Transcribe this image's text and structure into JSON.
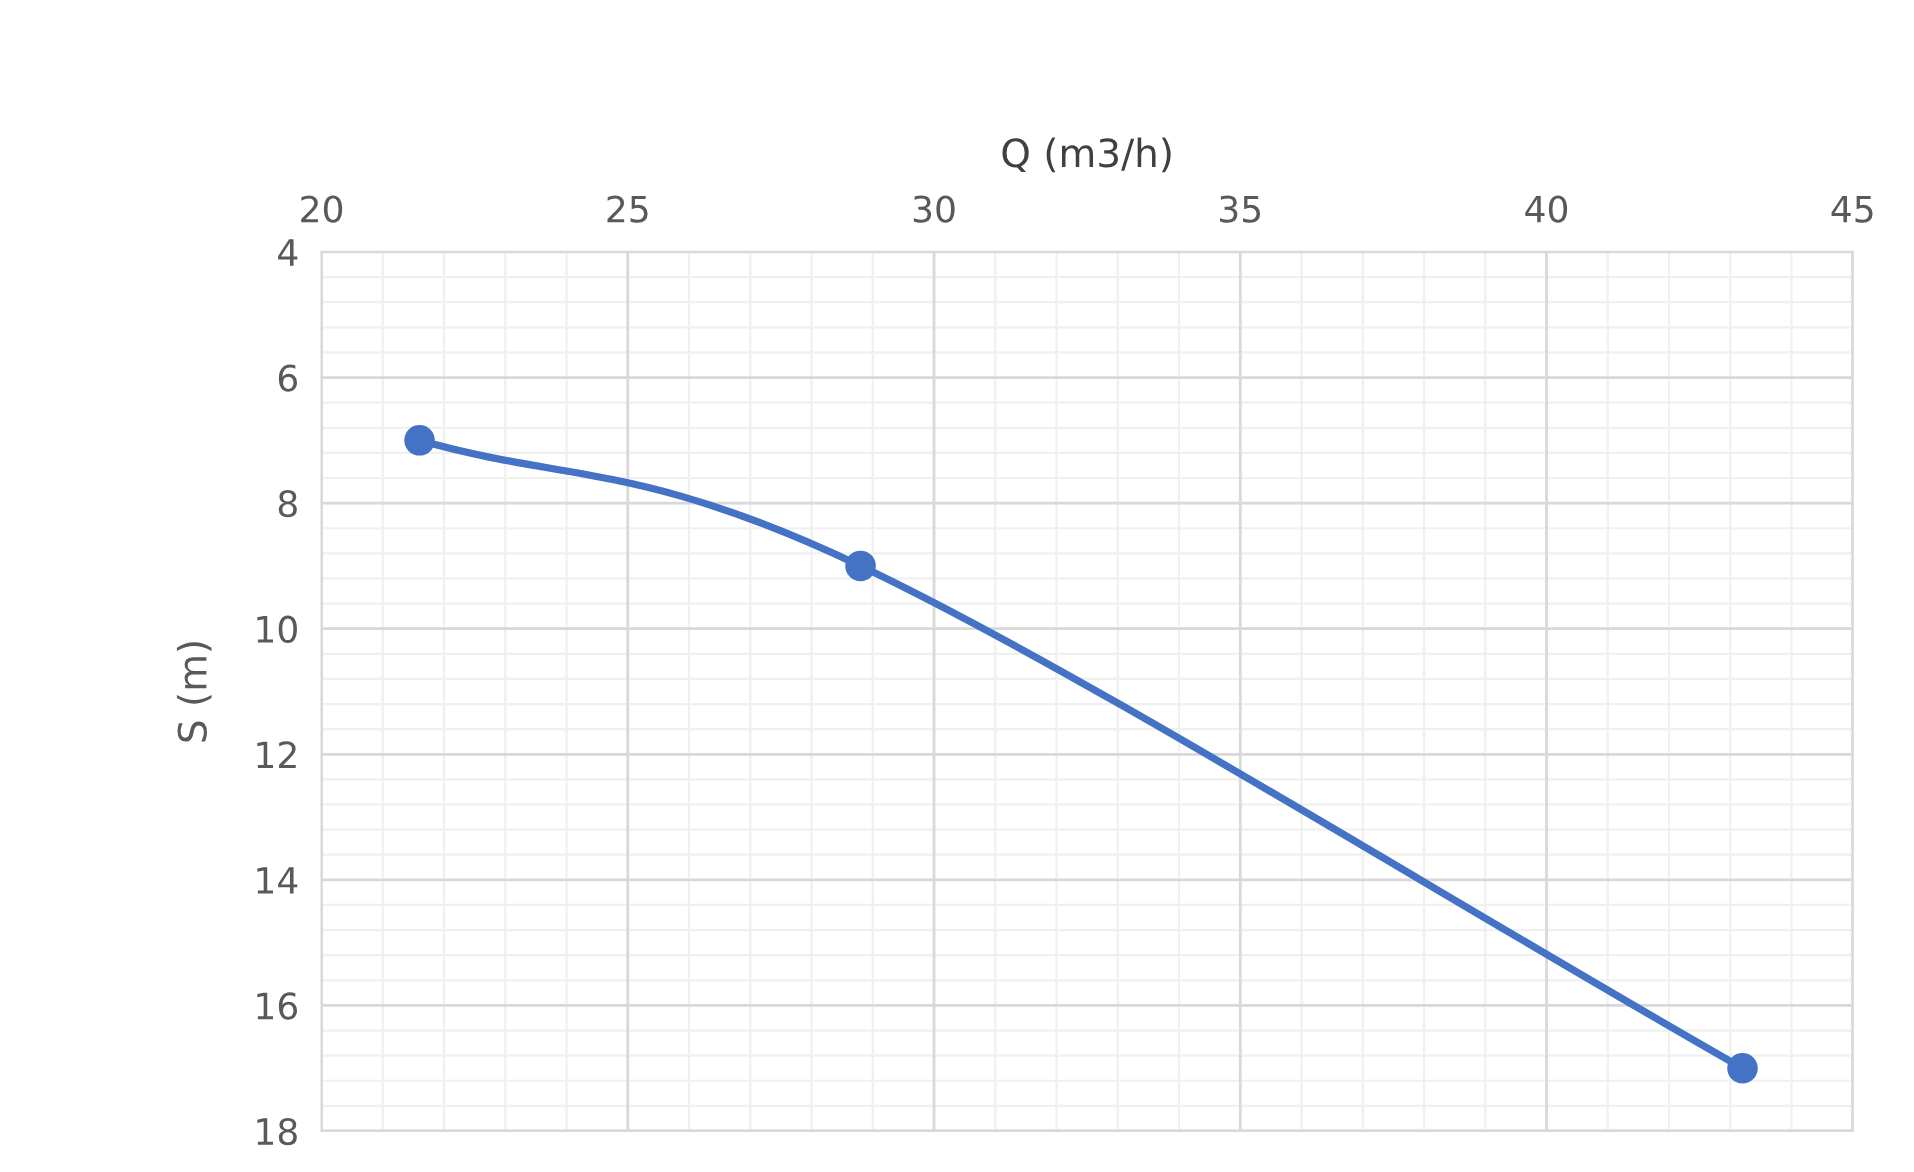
{
  "chart_data": {
    "type": "line",
    "xlabel": "Q (m3/h)",
    "ylabel": "S (m)",
    "x": [
      21.6,
      28.8,
      43.2
    ],
    "series": [
      {
        "color": "#4472c4",
        "values": [
          7,
          9,
          17
        ]
      }
    ],
    "xlim": [
      20,
      45
    ],
    "xticks": [
      20,
      25,
      30,
      35,
      40,
      45
    ],
    "ylim": [
      18,
      4
    ],
    "yticks": [
      4,
      6,
      8,
      10,
      12,
      14,
      16,
      18
    ],
    "grid": true,
    "marker": "circle",
    "line_style": "solid"
  }
}
